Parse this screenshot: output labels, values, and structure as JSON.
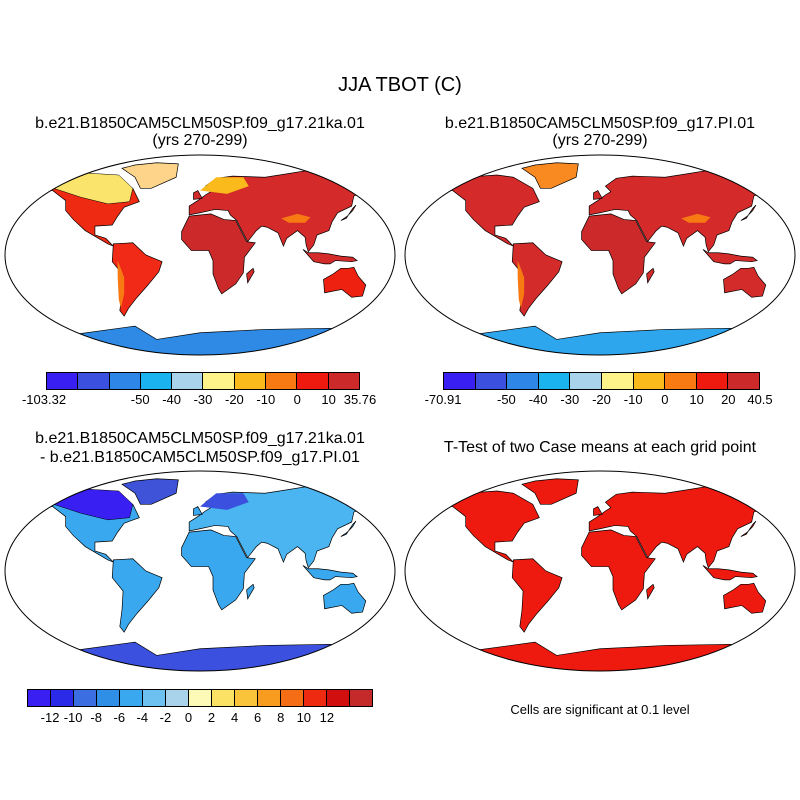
{
  "title": "JJA TBOT (C)",
  "panels": [
    {
      "title": "b.e21.B1850CAM5CLM50SP.f09_g17.21ka.01",
      "subtitle": "(yrs 270-299)",
      "colorbar": {
        "colors": [
          "#3a1ff2",
          "#3b50de",
          "#2e87e6",
          "#1ab3f0",
          "#a8d3ea",
          "#fdf38a",
          "#fbba1c",
          "#f77a13",
          "#ee1a10",
          "#cc2a2a"
        ],
        "labels": [
          "-103.32",
          "-50",
          "-40",
          "-30",
          "-20",
          "-10",
          "0",
          "10",
          "35.76"
        ]
      }
    },
    {
      "title": "b.e21.B1850CAM5CLM50SP.f09_g17.PI.01",
      "subtitle": "(yrs 270-299)",
      "colorbar": {
        "colors": [
          "#3a1ff2",
          "#3b50de",
          "#2e87e6",
          "#1ab3f0",
          "#a8d3ea",
          "#fdf38a",
          "#fbba1c",
          "#f77a13",
          "#ee1a10",
          "#cc2a2a"
        ],
        "labels": [
          "-70.91",
          "-50",
          "-40",
          "-30",
          "-20",
          "-10",
          "0",
          "10",
          "20",
          "40.5"
        ]
      }
    },
    {
      "title": "b.e21.B1850CAM5CLM50SP.f09_g17.21ka.01",
      "subtitle": "- b.e21.B1850CAM5CLM50SP.f09_g17.PI.01",
      "colorbar": {
        "colors": [
          "#3a1ff2",
          "#2a2ae8",
          "#3b6ee0",
          "#2f8fe6",
          "#3aa8ee",
          "#6cc1f0",
          "#a8d3ea",
          "#fdf9b6",
          "#fbe264",
          "#f9c33a",
          "#f79c1e",
          "#f56e16",
          "#ee2a10",
          "#d10f0f",
          "#c42a2a"
        ],
        "labels": [
          "-12",
          "-10",
          "-8",
          "-6",
          "-4",
          "-2",
          "0",
          "2",
          "4",
          "6",
          "8",
          "10",
          "12"
        ]
      }
    },
    {
      "title": "T-Test of two Case means at each grid point",
      "note": "Cells are significant at 0.1 level"
    }
  ]
}
